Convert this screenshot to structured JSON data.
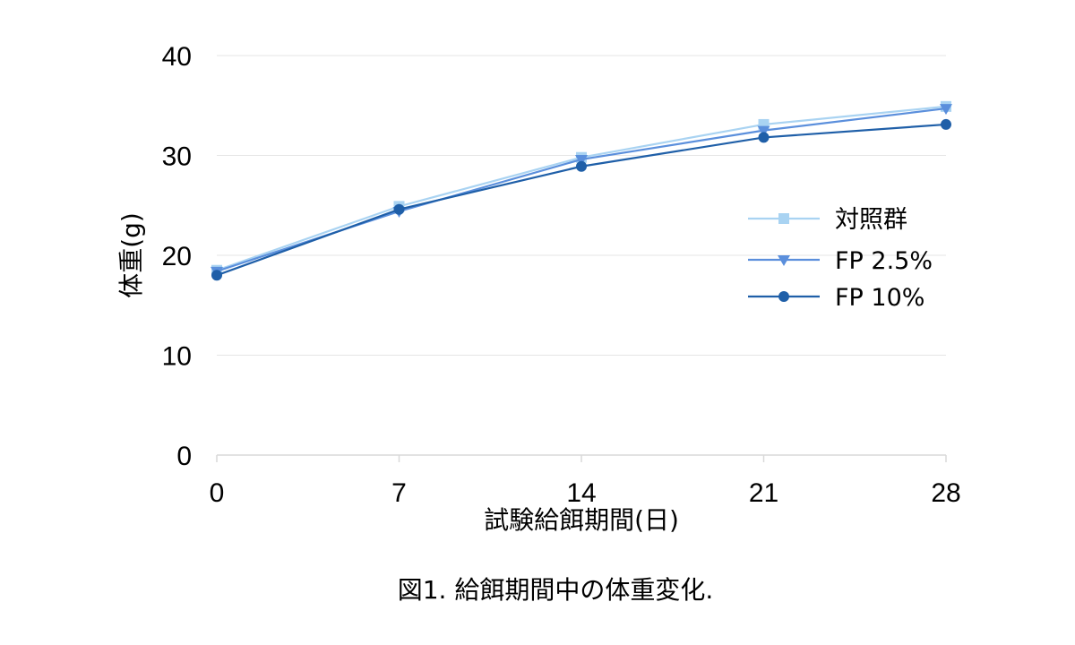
{
  "chart_data": {
    "type": "line",
    "xlabel": "試験給餌期間(日)",
    "ylabel": "体重(g)",
    "x": [
      0,
      7,
      14,
      21,
      28
    ],
    "ylim": [
      0,
      40
    ],
    "yticks": [
      "0",
      "10",
      "20",
      "30",
      "40"
    ],
    "xticks": [
      "0",
      "7",
      "14",
      "21",
      "28"
    ],
    "grid": true,
    "legend_position": "right",
    "series": [
      {
        "name": "対照群",
        "values": [
          18.5,
          24.9,
          29.8,
          33.1,
          34.9
        ],
        "color": "#a9d3f2",
        "marker": "square"
      },
      {
        "name": "FP 2.5%",
        "values": [
          18.4,
          24.4,
          29.6,
          32.5,
          34.7
        ],
        "color": "#5b8fdc",
        "marker": "triangle-down"
      },
      {
        "name": "FP 10%",
        "values": [
          18.0,
          24.6,
          28.9,
          31.8,
          33.1
        ],
        "color": "#1f5fa8",
        "marker": "circle"
      }
    ]
  },
  "caption": "図1. 給餌期間中の体重変化."
}
